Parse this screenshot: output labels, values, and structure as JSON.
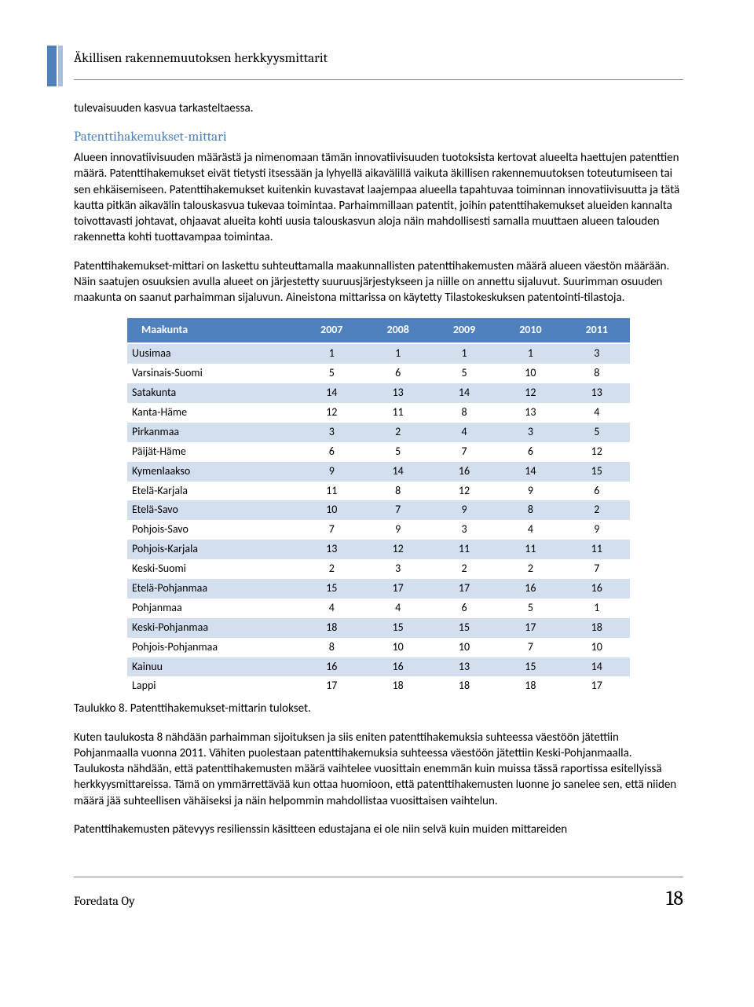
{
  "header": {
    "title": "Äkillisen rakennemuutoksen herkkyysmittarit"
  },
  "intro_line": "tulevaisuuden kasvua tarkasteltaessa.",
  "section_title": "Patenttihakemukset-mittari",
  "p1": "Alueen innovatiivisuuden määrästä ja nimenomaan tämän innovatiivisuuden tuotoksista kertovat alueelta haettujen patenttien määrä. Patenttihakemukset eivät tietysti itsessään ja lyhyellä aikavälillä vaikuta äkillisen rakennemuutoksen toteutumiseen tai sen ehkäisemiseen. Patenttihakemukset kuitenkin kuvastavat laajempaa alueella tapahtuvaa toiminnan innovatiivisuutta ja tätä kautta pitkän aikavälin talouskasvua tukevaa toimintaa. Parhaimmillaan patentit, joihin patenttihakemukset alueiden kannalta toivottavasti johtavat, ohjaavat alueita kohti uusia talouskasvun aloja näin mahdollisesti samalla muuttaen alueen talouden rakennetta kohti tuottavampaa toimintaa.",
  "p2": "Patenttihakemukset-mittari on laskettu suhteuttamalla maakunnallisten patenttihakemusten määrä alueen väestön määrään. Näin saatujen osuuksien avulla alueet on järjestetty suuruusjärjestykseen ja niille on annettu sijaluvut. Suurimman osuuden maakunta on saanut parhaimman sijaluvun. Aineistona mittarissa on käytetty Tilastokeskuksen patentointi-tilastoja.",
  "table": {
    "columns": [
      "Maakunta",
      "2007",
      "2008",
      "2009",
      "2010",
      "2011"
    ],
    "rows": [
      [
        "Uusimaa",
        "1",
        "1",
        "1",
        "1",
        "3"
      ],
      [
        "Varsinais-Suomi",
        "5",
        "6",
        "5",
        "10",
        "8"
      ],
      [
        "Satakunta",
        "14",
        "13",
        "14",
        "12",
        "13"
      ],
      [
        "Kanta-Häme",
        "12",
        "11",
        "8",
        "13",
        "4"
      ],
      [
        "Pirkanmaa",
        "3",
        "2",
        "4",
        "3",
        "5"
      ],
      [
        "Päijät-Häme",
        "6",
        "5",
        "7",
        "6",
        "12"
      ],
      [
        "Kymenlaakso",
        "9",
        "14",
        "16",
        "14",
        "15"
      ],
      [
        "Etelä-Karjala",
        "11",
        "8",
        "12",
        "9",
        "6"
      ],
      [
        "Etelä-Savo",
        "10",
        "7",
        "9",
        "8",
        "2"
      ],
      [
        "Pohjois-Savo",
        "7",
        "9",
        "3",
        "4",
        "9"
      ],
      [
        "Pohjois-Karjala",
        "13",
        "12",
        "11",
        "11",
        "11"
      ],
      [
        "Keski-Suomi",
        "2",
        "3",
        "2",
        "2",
        "7"
      ],
      [
        "Etelä-Pohjanmaa",
        "15",
        "17",
        "17",
        "16",
        "16"
      ],
      [
        "Pohjanmaa",
        "4",
        "4",
        "6",
        "5",
        "1"
      ],
      [
        "Keski-Pohjanmaa",
        "18",
        "15",
        "15",
        "17",
        "18"
      ],
      [
        "Pohjois-Pohjanmaa",
        "8",
        "10",
        "10",
        "7",
        "10"
      ],
      [
        "Kainuu",
        "16",
        "16",
        "13",
        "15",
        "14"
      ],
      [
        "Lappi",
        "17",
        "18",
        "18",
        "18",
        "17"
      ]
    ]
  },
  "table_caption": "Taulukko 8. Patenttihakemukset-mittarin tulokset.",
  "p3": "Kuten taulukosta 8 nähdään parhaimman sijoituksen ja siis eniten patenttihakemuksia suhteessa väestöön jätettiin Pohjanmaalla vuonna 2011. Vähiten puolestaan patenttihakemuksia suhteessa väestöön jätettiin Keski-Pohjanmaalla. Taulukosta nähdään, että patenttihakemusten määrä vaihtelee vuosittain enemmän kuin muissa tässä raportissa esitellyissä herkkyysmittareissa. Tämä on ymmärrettävää kun ottaa huomioon, että patenttihakemusten luonne jo sanelee sen, että niiden määrä jää suhteellisen vähäiseksi ja näin helpommin mahdollistaa vuosittaisen vaihtelun.",
  "p4": "Patenttihakemusten pätevyys resilienssin käsitteen edustajana ei ole niin selvä kuin muiden mittareiden",
  "footer": {
    "company": "Foredata Oy",
    "page": "18"
  }
}
